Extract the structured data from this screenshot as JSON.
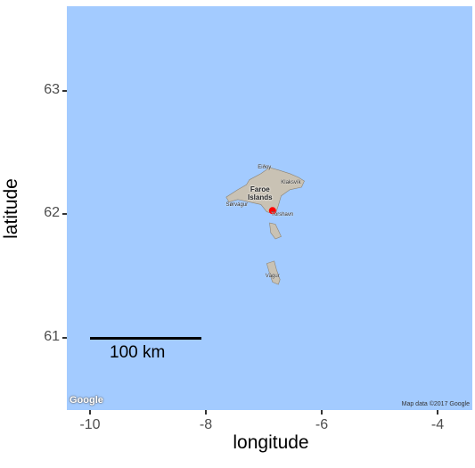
{
  "map": {
    "type": "map",
    "x_axis": {
      "label": "longitude",
      "ticks": [
        "-10",
        "-8",
        "-6",
        "-4"
      ],
      "tick_values": [
        -10,
        -8,
        -6,
        -4
      ],
      "range": [
        -10.4,
        -3.4
      ]
    },
    "y_axis": {
      "label": "latitude",
      "ticks": [
        "61",
        "62",
        "63"
      ],
      "tick_values": [
        61,
        62,
        63
      ],
      "range": [
        60.41,
        63.69
      ]
    },
    "scale_bar": {
      "label": "100 km",
      "from_lon": -10,
      "to_lon": -8.08,
      "lat": 61
    },
    "point": {
      "lon": -6.85,
      "lat": 62.03,
      "color": "#ff0000"
    },
    "background_color": "#a3cbff",
    "land_color": "#c9c2b4",
    "region_label": [
      "Faroe",
      "Islands"
    ],
    "places": [
      {
        "name": "Eiðoy",
        "lon": -6.95,
        "lat": 62.37
      },
      {
        "name": "Klaksvík",
        "lon": -6.55,
        "lat": 62.25
      },
      {
        "name": "Sørvágur",
        "lon": -7.5,
        "lat": 62.07
      },
      {
        "name": "Tórshavn",
        "lon": -6.72,
        "lat": 61.99
      },
      {
        "name": "Vágur",
        "lon": -6.82,
        "lat": 61.49
      }
    ],
    "google_logo": "Google",
    "attribution": "Map data ©2017 Google"
  }
}
